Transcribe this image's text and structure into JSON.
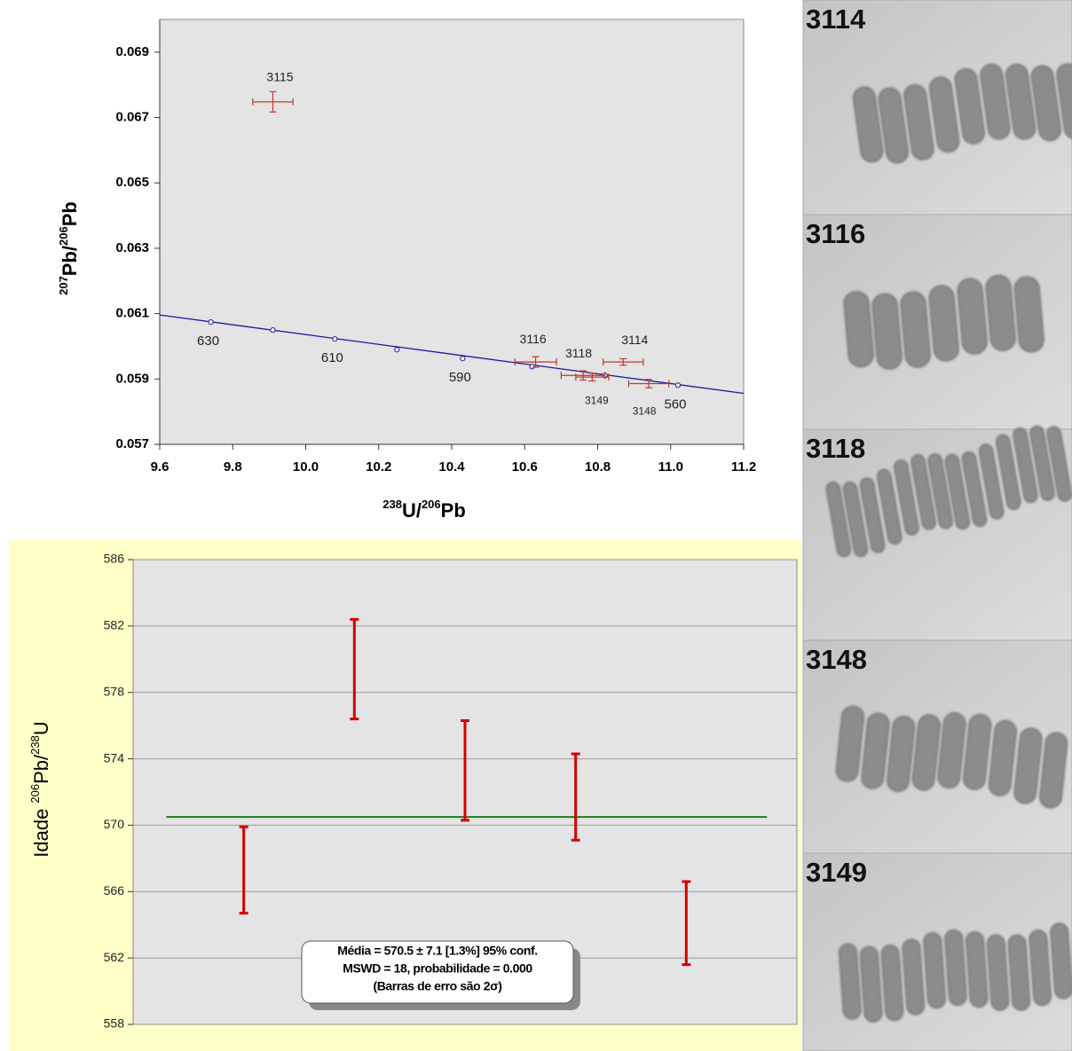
{
  "chart_data": [
    {
      "type": "scatter",
      "x_label": [
        "238",
        "U/",
        "206",
        "Pb"
      ],
      "y_label": [
        "207",
        "Pb/",
        "206",
        "Pb"
      ],
      "xlim": [
        9.6,
        11.2
      ],
      "xticks": [
        9.6,
        9.8,
        {
          "value": 10,
          "label": "10.0"
        },
        10.2,
        10.4,
        10.6,
        10.8,
        {
          "value": 11,
          "label": "11.0"
        },
        11.2
      ],
      "ylim": [
        0.057,
        0.07
      ],
      "yticks": [
        0.057,
        0.059,
        0.061,
        0.063,
        0.065,
        0.067,
        0.069
      ],
      "series": [
        {
          "color": "#c0392b",
          "labels": [
            "3115",
            "3116",
            "3118",
            "3149",
            "3114",
            "3148"
          ],
          "x": [
            9.91,
            10.63,
            10.76,
            10.785,
            10.87,
            10.94
          ],
          "y": [
            0.06748,
            0.05952,
            0.05911,
            0.05906,
            0.05952,
            0.05886
          ],
          "xerr": [
            0.055,
            0.057,
            0.06,
            0.045,
            0.055,
            0.055
          ],
          "yerr": [
            0.00031,
            0.00016,
            0.00014,
            0.00012,
            0.0001,
            0.00013
          ]
        }
      ],
      "concordia": {
        "color": "#1a1aa0",
        "x": [
          9.6,
          11.2
        ],
        "y": [
          0.06096,
          0.05856
        ],
        "markers_x": [
          9.74,
          9.91,
          10.08,
          10.25,
          10.43,
          10.62,
          10.82,
          11.02
        ],
        "markers_y": [
          0.060742,
          0.060497,
          0.060224,
          0.059898,
          0.059626,
          0.059381,
          0.059109,
          0.05881
        ],
        "labels": [
          "630",
          null,
          "610",
          null,
          "590",
          null,
          null,
          "560"
        ]
      }
    },
    {
      "type": "errorbar",
      "y_label": [
        "Idade ",
        "206",
        "Pb/",
        "238",
        "U"
      ],
      "xlim": [
        0,
        6
      ],
      "x": [
        1,
        2,
        3,
        4,
        5
      ],
      "values": [
        567.3,
        579.4,
        573.3,
        571.7,
        564.1
      ],
      "errors": [
        2.6,
        3.0,
        3.0,
        2.6,
        2.5
      ],
      "color": "#d40000",
      "mean": 570.5,
      "mean_color": "#1e7b1e",
      "ylim": [
        558,
        586
      ],
      "yticks": [
        558,
        562,
        566,
        570,
        574,
        578,
        582,
        586
      ],
      "grid": true,
      "annotation": [
        "Média = 570.5 ± 7.1  [1.3%]  95% conf.",
        "MSWD = 18, probabilidade = 0.000",
        "(Barras de erro são 2σ)"
      ]
    }
  ],
  "panels": [
    {
      "label": "3114"
    },
    {
      "label": "3116"
    },
    {
      "label": "3118"
    },
    {
      "label": "3148"
    },
    {
      "label": "3149"
    }
  ]
}
